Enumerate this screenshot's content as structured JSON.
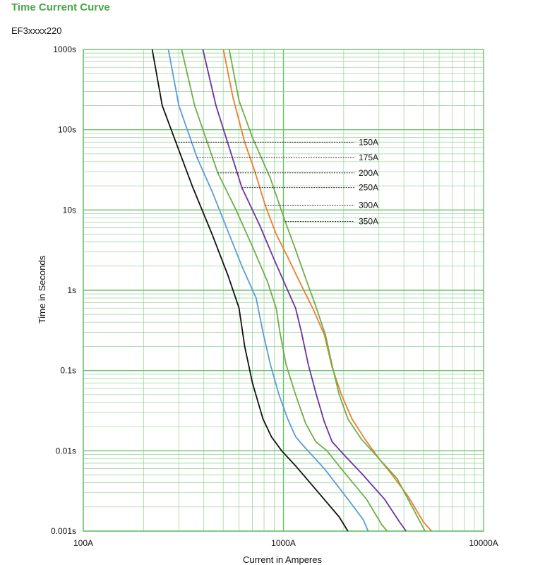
{
  "header": {
    "title": "Time Current Curve",
    "subtitle": "EF3xxxx220"
  },
  "colors": {
    "title": "#4aa64a",
    "grid": "#9fd49f",
    "grid_major": "#6cc06c"
  },
  "chart_data": {
    "type": "line",
    "title": "Time Current Curve",
    "subtitle": "EF3xxxx220",
    "xlabel": "Current in Amperes",
    "ylabel": "Time in Seconds",
    "x_scale": "log",
    "y_scale": "log",
    "xlim": [
      100,
      10000
    ],
    "ylim": [
      0.001,
      1000
    ],
    "x_ticks": [
      {
        "value": 100,
        "label": "100A"
      },
      {
        "value": 1000,
        "label": "1000A"
      },
      {
        "value": 10000,
        "label": "10000A"
      }
    ],
    "y_ticks": [
      {
        "value": 1000,
        "label": "1000s"
      },
      {
        "value": 100,
        "label": "100s"
      },
      {
        "value": 10,
        "label": "10s"
      },
      {
        "value": 1,
        "label": "1s"
      },
      {
        "value": 0.1,
        "label": "0.1s"
      },
      {
        "value": 0.01,
        "label": "0.01s"
      },
      {
        "value": 0.001,
        "label": "0.001s"
      }
    ],
    "grid": true,
    "legend": "inline labels with leader lines",
    "series": [
      {
        "name": "150A",
        "color": "#111111",
        "label_anchor": {
          "x": 290,
          "y": 70
        },
        "points": [
          [
            221,
            1000
          ],
          [
            248,
            200
          ],
          [
            290,
            70
          ],
          [
            350,
            20
          ],
          [
            440,
            5
          ],
          [
            530,
            1.5
          ],
          [
            600,
            0.6
          ],
          [
            640,
            0.2
          ],
          [
            700,
            0.07
          ],
          [
            790,
            0.025
          ],
          [
            870,
            0.015
          ],
          [
            980,
            0.01
          ],
          [
            1150,
            0.0065
          ],
          [
            1500,
            0.003
          ],
          [
            1900,
            0.0015
          ],
          [
            2100,
            0.001
          ]
        ]
      },
      {
        "name": "175A",
        "color": "#5b9bd5",
        "label_anchor": {
          "x": 370,
          "y": 45
        },
        "points": [
          [
            266,
            1000
          ],
          [
            300,
            200
          ],
          [
            370,
            45
          ],
          [
            440,
            17
          ],
          [
            520,
            6
          ],
          [
            620,
            2
          ],
          [
            730,
            0.8
          ],
          [
            790,
            0.3
          ],
          [
            860,
            0.12
          ],
          [
            950,
            0.05
          ],
          [
            1050,
            0.025
          ],
          [
            1150,
            0.015
          ],
          [
            1280,
            0.011
          ],
          [
            1600,
            0.006
          ],
          [
            2100,
            0.0025
          ],
          [
            2500,
            0.0014
          ],
          [
            2650,
            0.001
          ]
        ]
      },
      {
        "name": "200A",
        "color": "#70ad47",
        "label_anchor": {
          "x": 470,
          "y": 29
        },
        "points": [
          [
            310,
            1000
          ],
          [
            360,
            200
          ],
          [
            470,
            29
          ],
          [
            580,
            10
          ],
          [
            700,
            3.5
          ],
          [
            830,
            1.3
          ],
          [
            920,
            0.6
          ],
          [
            960,
            0.3
          ],
          [
            1030,
            0.12
          ],
          [
            1150,
            0.05
          ],
          [
            1290,
            0.022
          ],
          [
            1450,
            0.013
          ],
          [
            1650,
            0.01
          ],
          [
            2000,
            0.0055
          ],
          [
            2600,
            0.0025
          ],
          [
            3100,
            0.0012
          ],
          [
            3300,
            0.001
          ]
        ]
      },
      {
        "name": "250A",
        "color": "#7030a0",
        "label_anchor": {
          "x": 620,
          "y": 19
        },
        "points": [
          [
            396,
            1000
          ],
          [
            460,
            200
          ],
          [
            620,
            19
          ],
          [
            760,
            6.5
          ],
          [
            900,
            2.4
          ],
          [
            1050,
            1
          ],
          [
            1150,
            0.6
          ],
          [
            1230,
            0.3
          ],
          [
            1330,
            0.12
          ],
          [
            1460,
            0.05
          ],
          [
            1600,
            0.023
          ],
          [
            1750,
            0.013
          ],
          [
            2000,
            0.009
          ],
          [
            2500,
            0.005
          ],
          [
            3200,
            0.0025
          ],
          [
            3800,
            0.0013
          ],
          [
            4100,
            0.001
          ]
        ]
      },
      {
        "name": "300A",
        "color": "#ed7d31",
        "label_anchor": {
          "x": 810,
          "y": 11.5
        },
        "points": [
          [
            501,
            1000
          ],
          [
            560,
            250
          ],
          [
            640,
            70
          ],
          [
            720,
            30
          ],
          [
            810,
            11.5
          ],
          [
            920,
            5
          ],
          [
            1050,
            2.6
          ],
          [
            1200,
            1.3
          ],
          [
            1400,
            0.6
          ],
          [
            1600,
            0.28
          ],
          [
            1750,
            0.11
          ],
          [
            1950,
            0.05
          ],
          [
            2200,
            0.025
          ],
          [
            2550,
            0.014
          ],
          [
            3000,
            0.008
          ],
          [
            3500,
            0.005
          ],
          [
            4200,
            0.0027
          ],
          [
            5000,
            0.0013
          ],
          [
            5500,
            0.001
          ]
        ]
      },
      {
        "name": "350A",
        "color": "#70ad47",
        "label_anchor": {
          "x": 1020,
          "y": 7.2
        },
        "points": [
          [
            536,
            1000
          ],
          [
            600,
            230
          ],
          [
            700,
            80
          ],
          [
            860,
            25
          ],
          [
            1020,
            7.2
          ],
          [
            1150,
            3.2
          ],
          [
            1280,
            1.5
          ],
          [
            1430,
            0.7
          ],
          [
            1620,
            0.28
          ],
          [
            1760,
            0.11
          ],
          [
            1900,
            0.05
          ],
          [
            2100,
            0.025
          ],
          [
            2450,
            0.014
          ],
          [
            3000,
            0.008
          ],
          [
            3700,
            0.0045
          ],
          [
            4400,
            0.002
          ],
          [
            4900,
            0.0012
          ],
          [
            5100,
            0.001
          ]
        ]
      }
    ]
  }
}
